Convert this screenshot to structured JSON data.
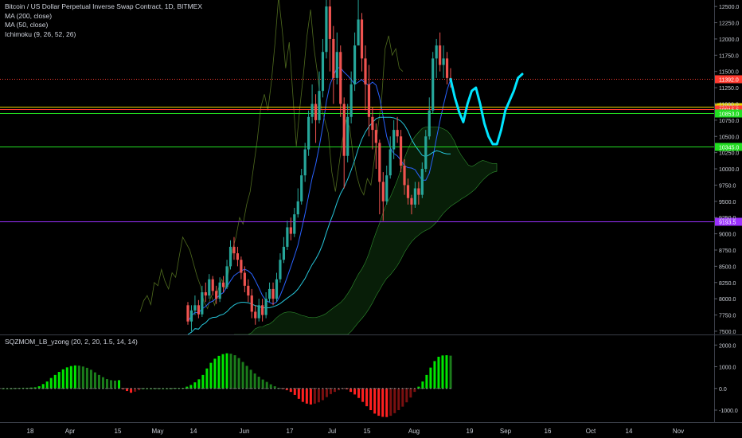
{
  "legend": {
    "title": "Bitcoin / US Dollar Perpetual Inverse Swap Contract, 1D, BITMEX",
    "ma200": "MA (200, close)",
    "ma50": "MA (50, close)",
    "ichimoku": "Ichimoku (9, 26, 52, 26)",
    "indicator": "SQZMOM_LB_yzong (20, 2, 20, 1.5, 14, 14)"
  },
  "colors": {
    "background": "#000000",
    "up": "#26a69a",
    "down": "#ef5350",
    "hist_lime": "#00e600",
    "hist_green": "#1b7d1b",
    "hist_red": "#ff2020",
    "hist_maroon": "#7a1010",
    "projection": "#00e5ff",
    "line_red": "#ff3b30",
    "line_yellow": "#e5d400",
    "line_green": "#22dd22",
    "line_purple": "#9b30ff",
    "cloud": "#1e6b1e"
  },
  "chart_data": {
    "type": "candlestick",
    "price_axis": {
      "ticks": [
        "12500.0",
        "12250.0",
        "12000.0",
        "11750.0",
        "11500.0",
        "11250.0",
        "11000.0",
        "10750.0",
        "10500.0",
        "10250.0",
        "10000.0",
        "9750.0",
        "9500.0",
        "9250.0",
        "9000.0",
        "8750.0",
        "8500.0",
        "8250.0",
        "8000.0",
        "7750.0",
        "7500.0"
      ],
      "range": [
        7450,
        12600
      ]
    },
    "indicator_axis": {
      "ticks": [
        "2000.0",
        "1000.0",
        "0.0",
        "-1000.0"
      ],
      "range": [
        -1550,
        2450
      ]
    },
    "time_axis": [
      "18",
      "Apr",
      "15",
      "May",
      "14",
      "Jun",
      "17",
      "Jul",
      "15",
      "Aug",
      "19",
      "Sep",
      "16",
      "Oct",
      "14",
      "Nov"
    ],
    "horizontal_lines": [
      {
        "price": 11392.0,
        "label": "11392.0",
        "color": "#ff3b30",
        "style": "dotted"
      },
      {
        "price": 10957.5,
        "label": "10957.5",
        "color": "#e5d400",
        "style": "solid"
      },
      {
        "price": 10915.5,
        "label": "10915.5",
        "color": "#ff3b30",
        "style": "solid"
      },
      {
        "price": 10853.0,
        "label": "10853.0",
        "color": "#22dd22",
        "style": "solid"
      },
      {
        "price": 10345.0,
        "label": "10345.0",
        "color": "#22dd22",
        "style": "solid"
      },
      {
        "price": 9193.5,
        "label": "9193.5",
        "color": "#9b30ff",
        "style": "solid"
      }
    ],
    "candles": [
      [
        7900,
        7650,
        7950,
        7600
      ],
      [
        7650,
        7820,
        7900,
        7500
      ],
      [
        7820,
        7900,
        8050,
        7750
      ],
      [
        7900,
        7760,
        7980,
        7700
      ],
      [
        7760,
        8100,
        8200,
        7720
      ],
      [
        8100,
        8050,
        8250,
        7950
      ],
      [
        8050,
        8300,
        8380,
        8000
      ],
      [
        8300,
        8120,
        8350,
        8050
      ],
      [
        8120,
        8000,
        8200,
        7920
      ],
      [
        8000,
        8250,
        8330,
        7950
      ],
      [
        8250,
        8180,
        8350,
        8100
      ],
      [
        8180,
        8500,
        8600,
        8150
      ],
      [
        8500,
        8800,
        8900,
        8450
      ],
      [
        8800,
        8700,
        8950,
        8600
      ],
      [
        8700,
        8600,
        8800,
        8500
      ],
      [
        8600,
        8400,
        8650,
        8300
      ],
      [
        8400,
        8200,
        8500,
        8100
      ],
      [
        8200,
        8050,
        8300,
        7950
      ],
      [
        8050,
        7800,
        8150,
        7700
      ],
      [
        7800,
        7700,
        7900,
        7600
      ],
      [
        7700,
        7900,
        8000,
        7650
      ],
      [
        7900,
        7750,
        8000,
        7650
      ],
      [
        7750,
        8000,
        8100,
        7700
      ],
      [
        8000,
        8150,
        8250,
        7950
      ],
      [
        8150,
        8000,
        8250,
        7900
      ],
      [
        8000,
        8300,
        8400,
        7950
      ],
      [
        8300,
        8600,
        8700,
        8250
      ],
      [
        8600,
        8800,
        8950,
        8550
      ],
      [
        8800,
        9100,
        9200,
        8750
      ],
      [
        9100,
        9000,
        9250,
        8900
      ],
      [
        9000,
        9300,
        9400,
        8950
      ],
      [
        9300,
        9500,
        9700,
        9250
      ],
      [
        9500,
        9900,
        10000,
        9450
      ],
      [
        9900,
        10300,
        10400,
        9800
      ],
      [
        10300,
        10800,
        10900,
        10200
      ],
      [
        10800,
        11000,
        11300,
        10700
      ],
      [
        11000,
        10750,
        11150,
        10400
      ],
      [
        10750,
        11200,
        11500,
        10700
      ],
      [
        11200,
        11800,
        12000,
        11100
      ],
      [
        11800,
        12500,
        12800,
        11700
      ],
      [
        12500,
        12000,
        12700,
        11500
      ],
      [
        12000,
        11400,
        12200,
        11000
      ],
      [
        11400,
        11800,
        12100,
        11300
      ],
      [
        11800,
        11000,
        11900,
        10800
      ],
      [
        11000,
        10200,
        11100,
        9700
      ],
      [
        10200,
        10800,
        11000,
        10100
      ],
      [
        10800,
        11300,
        11500,
        10700
      ],
      [
        11300,
        11900,
        12100,
        11200
      ],
      [
        11900,
        12300,
        12700,
        12100
      ],
      [
        12300,
        11700,
        12400,
        11500
      ],
      [
        11700,
        11300,
        11900,
        10900
      ],
      [
        11300,
        10800,
        11600,
        10500
      ],
      [
        10800,
        10600,
        10950,
        10300
      ],
      [
        10600,
        10400,
        10700,
        10000
      ],
      [
        10400,
        9800,
        10450,
        9300
      ],
      [
        9800,
        9500,
        9950,
        9200
      ],
      [
        9500,
        9900,
        10050,
        9450
      ],
      [
        9900,
        10300,
        10500,
        9850
      ],
      [
        10300,
        10600,
        10750,
        10150
      ],
      [
        10600,
        10500,
        10800,
        10400
      ],
      [
        10500,
        10050,
        10600,
        9950
      ],
      [
        10050,
        9750,
        10150,
        9600
      ],
      [
        9750,
        9550,
        9850,
        9450
      ],
      [
        9550,
        9450,
        9600,
        9300
      ],
      [
        9450,
        9700,
        9800,
        9400
      ],
      [
        9700,
        9600,
        9800,
        9450
      ],
      [
        9600,
        10000,
        10100,
        9550
      ],
      [
        10000,
        10500,
        10600,
        9950
      ],
      [
        10500,
        10900,
        11100,
        10450
      ],
      [
        10900,
        11700,
        11800,
        10850
      ],
      [
        11700,
        11900,
        12000,
        11400
      ],
      [
        11900,
        11600,
        12100,
        11500
      ],
      [
        11600,
        11700,
        11900,
        11400
      ],
      [
        11700,
        11400,
        11800,
        11300
      ],
      [
        11400,
        11350,
        11550,
        11250
      ]
    ],
    "momentum_histogram": [
      0,
      0,
      0,
      10,
      20,
      30,
      30,
      40,
      50,
      100,
      200,
      320,
      480,
      620,
      760,
      880,
      970,
      1030,
      1060,
      1050,
      1010,
      950,
      860,
      740,
      620,
      520,
      430,
      380,
      360,
      380,
      -40,
      -120,
      -200,
      -150,
      -80,
      0,
      0,
      0,
      0,
      0,
      0,
      0,
      0,
      20,
      20,
      20,
      80,
      160,
      280,
      420,
      620,
      920,
      1180,
      1370,
      1500,
      1580,
      1620,
      1600,
      1530,
      1400,
      1220,
      1040,
      860,
      690,
      540,
      410,
      300,
      190,
      100,
      30,
      -20,
      -80,
      -160,
      -300,
      -480,
      -620,
      -700,
      -740,
      -700,
      -640,
      -540,
      -400,
      -260,
      -160,
      -80,
      -30,
      -40,
      -160,
      -280,
      -440,
      -620,
      -820,
      -1000,
      -1160,
      -1260,
      -1310,
      -1320,
      -1260,
      -1140,
      -1000,
      -840,
      -640,
      -420,
      -160,
      80,
      320,
      620,
      960,
      1260,
      1460,
      1520,
      1530,
      1510
    ],
    "projection_path": [
      [
        0,
        11380
      ],
      [
        1,
        11100
      ],
      [
        2,
        10880
      ],
      [
        3,
        10720
      ],
      [
        4,
        11000
      ],
      [
        5,
        11200
      ],
      [
        6,
        11250
      ],
      [
        7,
        11000
      ],
      [
        8,
        10700
      ],
      [
        9,
        10500
      ],
      [
        10,
        10380
      ],
      [
        11,
        10380
      ],
      [
        12,
        10600
      ],
      [
        13,
        10900
      ],
      [
        14,
        11050
      ],
      [
        15,
        11200
      ],
      [
        16,
        11400
      ],
      [
        17,
        11460
      ]
    ]
  }
}
